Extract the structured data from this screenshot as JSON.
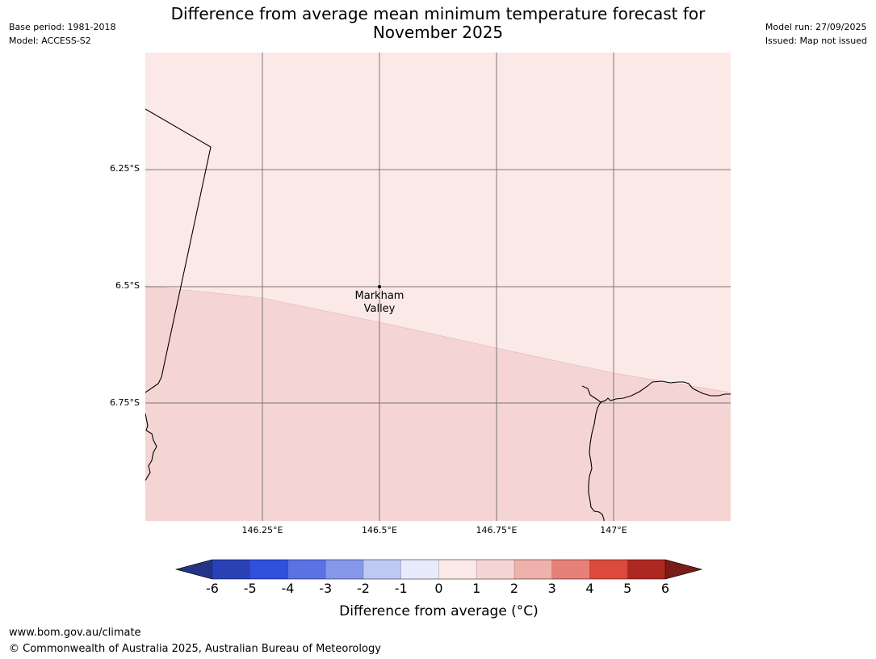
{
  "header": {
    "title_line1": "Difference from average mean minimum temperature forecast for",
    "title_line2": "November 2025",
    "base_period": "Base period: 1981-2018",
    "model": "Model: ACCESS-S2",
    "model_run": "Model run: 27/09/2025",
    "issued": "Issued: Map not issued"
  },
  "map": {
    "latitude_labels": [
      "6.25°S",
      "6.5°S",
      "6.75°S"
    ],
    "longitude_labels": [
      "146.25°E",
      "146.5°E",
      "146.75°E",
      "147°E"
    ],
    "latitudes": [
      -6.25,
      -6.5,
      -6.75
    ],
    "longitudes": [
      146.25,
      146.5,
      146.75,
      147.0
    ],
    "extent": {
      "lon_min": 146.0,
      "lon_max": 147.25,
      "lat_max": -6.0,
      "lat_min": -7.0
    },
    "place": {
      "name_line1": "Markham",
      "name_line2": "Valley",
      "lon": 146.5,
      "lat": -6.5
    },
    "regions": [
      {
        "category": "0 to 1",
        "color": "#fbe9e7"
      },
      {
        "category": "1 to 2",
        "color": "#f5d5d3"
      }
    ]
  },
  "colorbar": {
    "label": "Difference from average (°C)",
    "ticks": [
      "-6",
      "-5",
      "-4",
      "-3",
      "-2",
      "-1",
      "0",
      "1",
      "2",
      "3",
      "4",
      "5",
      "6"
    ],
    "colors": [
      "#233487",
      "#2a41b5",
      "#3050de",
      "#5a72e3",
      "#8697ea",
      "#bfc7f3",
      "#e8ebfc",
      "#fbe9e7",
      "#f5d5d3",
      "#eeb1ab",
      "#e68079",
      "#dc4a3e",
      "#ad2820",
      "#7a1c17"
    ]
  },
  "footer": {
    "url": "www.bom.gov.au/climate",
    "copyright": "© Commonwealth of Australia 2025, Australian Bureau of Meteorology"
  }
}
